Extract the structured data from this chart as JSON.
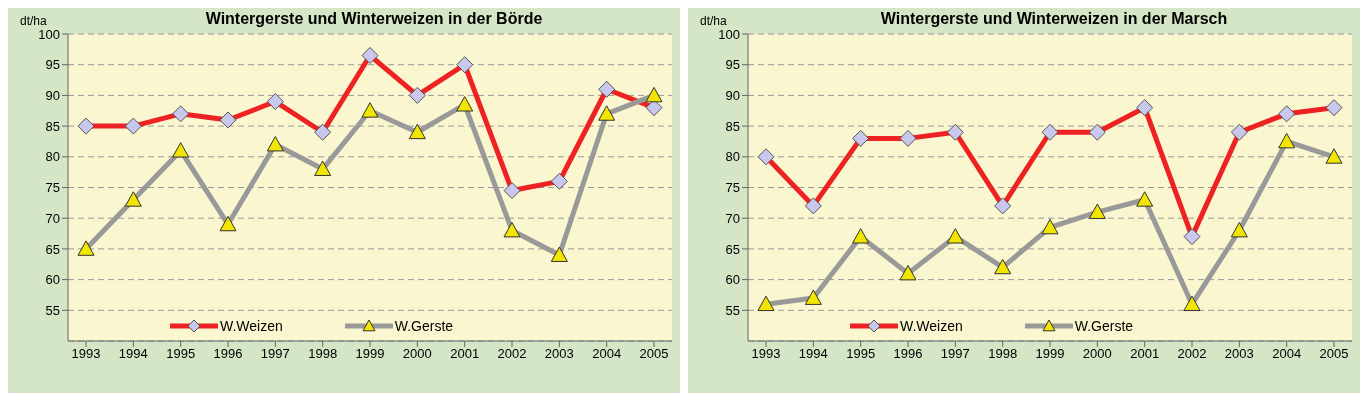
{
  "chart_data": [
    {
      "type": "line",
      "title": "Wintergerste und Winterweizen in der Börde",
      "ylabel": "dt/ha",
      "categories": [
        "1993",
        "1994",
        "1995",
        "1996",
        "1997",
        "1998",
        "1999",
        "2000",
        "2001",
        "2002",
        "2003",
        "2004",
        "2005"
      ],
      "series": [
        {
          "name": "W.Weizen",
          "color": "#ee2222",
          "marker": "diamond",
          "values": [
            85,
            85,
            87,
            86,
            89,
            84,
            96.5,
            90,
            95,
            74.5,
            76,
            91,
            88
          ]
        },
        {
          "name": "W.Gerste",
          "color": "#999999",
          "marker": "triangle",
          "values": [
            65,
            73,
            81,
            69,
            82,
            78,
            87.5,
            84,
            88.5,
            68,
            64,
            87,
            90
          ]
        }
      ],
      "ylim": [
        50,
        100
      ],
      "yticks": [
        55,
        60,
        65,
        70,
        75,
        80,
        85,
        90,
        95,
        100
      ],
      "grid": "y",
      "legend": "bottom",
      "line_style": "solid"
    },
    {
      "type": "line",
      "title": "Wintergerste und Winterweizen in der Marsch",
      "ylabel": "dt/ha",
      "categories": [
        "1993",
        "1994",
        "1995",
        "1996",
        "1997",
        "1998",
        "1999",
        "2000",
        "2001",
        "2002",
        "2003",
        "2004",
        "2005"
      ],
      "series": [
        {
          "name": "W.Weizen",
          "color": "#ee2222",
          "marker": "diamond",
          "values": [
            80,
            72,
            83,
            83,
            84,
            72,
            84,
            84,
            88,
            67,
            84,
            87,
            88
          ]
        },
        {
          "name": "W.Gerste",
          "color": "#999999",
          "marker": "triangle",
          "values": [
            56,
            57,
            67,
            61,
            67,
            62,
            68.5,
            71,
            73,
            56,
            68,
            82.5,
            80
          ]
        }
      ],
      "ylim": [
        50,
        100
      ],
      "yticks": [
        55,
        60,
        65,
        70,
        75,
        80,
        85,
        90,
        95,
        100
      ],
      "grid": "y",
      "legend": "bottom",
      "line_style": "solid"
    }
  ]
}
